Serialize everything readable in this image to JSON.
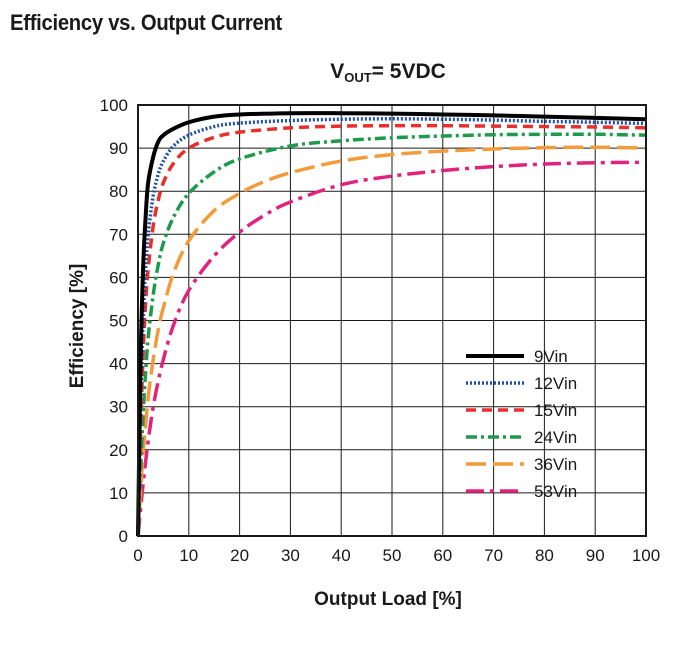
{
  "page": {
    "title": "Efficiency vs. Output Current"
  },
  "chart_data": {
    "type": "line",
    "title_main": "V",
    "title_sub": "OUT",
    "title_rest": "= 5VDC",
    "xlabel": "Output Load [%]",
    "ylabel": "Efficiency [%]",
    "xlim": [
      0,
      100
    ],
    "ylim": [
      0,
      100
    ],
    "xticks": [
      0,
      10,
      20,
      30,
      40,
      50,
      60,
      70,
      80,
      90,
      100
    ],
    "yticks": [
      0,
      10,
      20,
      30,
      40,
      50,
      60,
      70,
      80,
      90,
      100
    ],
    "grid": true,
    "legend_position": "bottom-right",
    "series": [
      {
        "name": "9Vin",
        "color": "#000000",
        "dash": "solid",
        "x": [
          0,
          0.5,
          1,
          1.5,
          2,
          3,
          4,
          5,
          7,
          10,
          15,
          20,
          30,
          40,
          50,
          60,
          70,
          80,
          90,
          100
        ],
        "y": [
          0,
          40,
          62,
          74,
          82,
          88,
          91.5,
          93,
          94.5,
          96,
          97.3,
          97.8,
          98.1,
          98.1,
          98,
          97.8,
          97.6,
          97.3,
          97,
          96.7
        ]
      },
      {
        "name": "12Vin",
        "color": "#1f4fa8",
        "dash": "dot",
        "x": [
          0,
          0.5,
          1,
          1.5,
          2,
          3,
          4,
          5,
          7,
          10,
          15,
          20,
          30,
          40,
          50,
          60,
          70,
          80,
          90,
          100
        ],
        "y": [
          0,
          30,
          50,
          62,
          70,
          79,
          84,
          87,
          90.5,
          93,
          95,
          95.8,
          96.4,
          96.7,
          96.8,
          96.7,
          96.5,
          96.2,
          96,
          95.7
        ]
      },
      {
        "name": "15Vin",
        "color": "#e8302a",
        "dash": "dash",
        "x": [
          0,
          0.5,
          1,
          1.5,
          2,
          3,
          4,
          5,
          7,
          10,
          15,
          20,
          30,
          40,
          50,
          60,
          70,
          80,
          90,
          100
        ],
        "y": [
          0,
          24,
          42,
          54,
          62,
          72,
          78,
          82,
          86.5,
          90,
          92.5,
          93.7,
          94.7,
          95.1,
          95.2,
          95.2,
          95.1,
          95,
          94.9,
          94.7
        ]
      },
      {
        "name": "24Vin",
        "color": "#1e9a4c",
        "dash": "dashdot",
        "x": [
          0,
          0.5,
          1,
          1.5,
          2,
          3,
          4,
          5,
          7,
          10,
          15,
          20,
          30,
          40,
          50,
          60,
          70,
          80,
          90,
          100
        ],
        "y": [
          0,
          15,
          28,
          38,
          46,
          56,
          63,
          68,
          74,
          79.5,
          84.5,
          87.5,
          90.5,
          91.7,
          92.4,
          92.8,
          93.1,
          93.2,
          93.2,
          93
        ]
      },
      {
        "name": "36Vin",
        "color": "#f39b3a",
        "dash": "longdash",
        "x": [
          0,
          0.5,
          1,
          2,
          3,
          4,
          5,
          7,
          10,
          15,
          20,
          25,
          30,
          40,
          50,
          60,
          70,
          80,
          90,
          100
        ],
        "y": [
          0,
          10,
          19,
          32,
          41,
          48,
          53,
          61,
          68.5,
          75.5,
          79.5,
          82.3,
          84.3,
          87,
          88.5,
          89.3,
          89.8,
          90.1,
          90.2,
          90
        ]
      },
      {
        "name": "53Vin",
        "color": "#e3227e",
        "dash": "longdashdot",
        "x": [
          0,
          0.5,
          1,
          2,
          3,
          4,
          5,
          7,
          10,
          15,
          20,
          25,
          30,
          40,
          50,
          60,
          70,
          80,
          90,
          100
        ],
        "y": [
          0,
          6,
          12,
          22,
          30,
          36,
          41,
          49,
          57,
          65,
          70.5,
          74.5,
          77.5,
          81.5,
          83.5,
          84.8,
          85.7,
          86.3,
          86.6,
          86.7
        ]
      }
    ]
  }
}
